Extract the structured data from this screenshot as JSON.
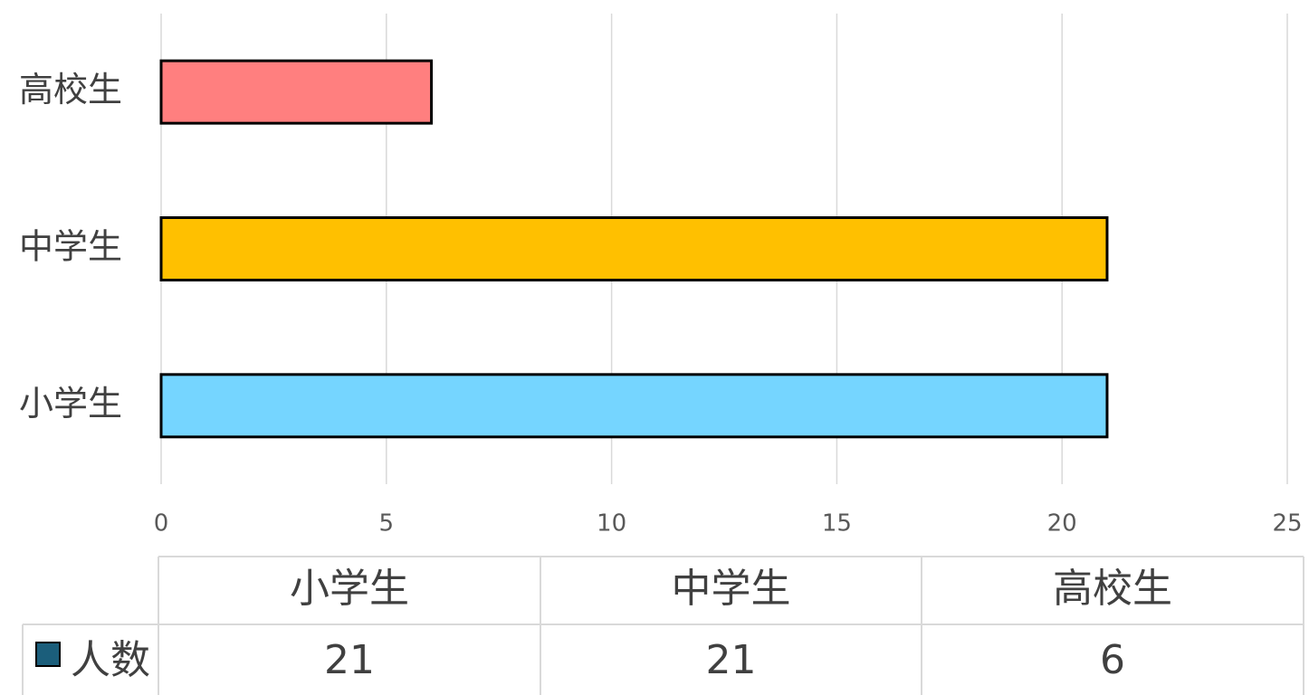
{
  "chart_data": {
    "type": "bar",
    "orientation": "horizontal",
    "categories": [
      "小学生",
      "中学生",
      "高校生"
    ],
    "series": [
      {
        "name": "人数",
        "color": "#1b5e7b",
        "values": [
          21,
          21,
          6
        ]
      }
    ],
    "bar_colors": [
      "#75d5ff",
      "#ffc000",
      "#ff7f7f"
    ],
    "xlim": [
      0,
      25
    ],
    "xticks": [
      0,
      5,
      10,
      15,
      20,
      25
    ],
    "grid": true,
    "data_table": true
  }
}
